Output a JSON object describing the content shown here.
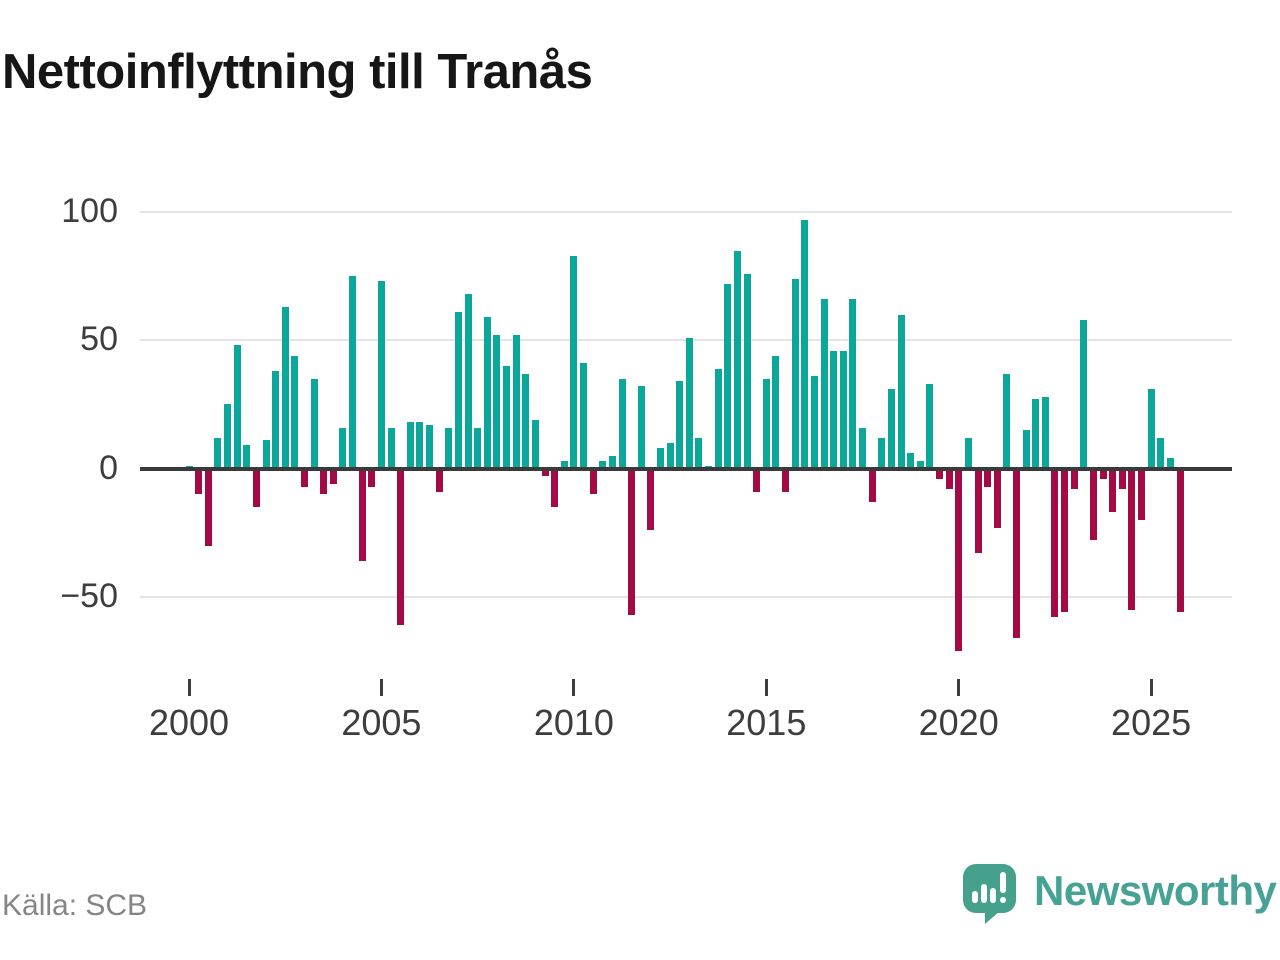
{
  "title": "Nettoinflyttning till Tranås",
  "source": "Källa: SCB",
  "branding": {
    "name": "Newsworthy",
    "logo_icon": "speech-bubble-bar-chart-icon"
  },
  "colors": {
    "positive": "#0ba79a",
    "negative": "#a40b44",
    "grid": "#e4e4e4",
    "zero_line": "#3a3a3a",
    "axis_text": "#3d3d3d",
    "title_text": "#161616",
    "source_text": "#858585",
    "brand": "#46a295"
  },
  "chart_data": {
    "type": "bar",
    "title": "Nettoinflyttning till Tranås",
    "xlabel": "",
    "ylabel": "",
    "grid": "horizontal",
    "legend": "none",
    "y_ticks": [
      100,
      50,
      0,
      -50
    ],
    "ylim": [
      -78,
      105
    ],
    "x_tick_years": [
      "2000",
      "2005",
      "2010",
      "2015",
      "2020",
      "2025"
    ],
    "frequency": "quarterly",
    "categories": [
      "2000 Q1",
      "2000 Q2",
      "2000 Q3",
      "2000 Q4",
      "2001 Q1",
      "2001 Q2",
      "2001 Q3",
      "2001 Q4",
      "2002 Q1",
      "2002 Q2",
      "2002 Q3",
      "2002 Q4",
      "2003 Q1",
      "2003 Q2",
      "2003 Q3",
      "2003 Q4",
      "2004 Q1",
      "2004 Q2",
      "2004 Q3",
      "2004 Q4",
      "2005 Q1",
      "2005 Q2",
      "2005 Q3",
      "2005 Q4",
      "2006 Q1",
      "2006 Q2",
      "2006 Q3",
      "2006 Q4",
      "2007 Q1",
      "2007 Q2",
      "2007 Q3",
      "2007 Q4",
      "2008 Q1",
      "2008 Q2",
      "2008 Q3",
      "2008 Q4",
      "2009 Q1",
      "2009 Q2",
      "2009 Q3",
      "2009 Q4",
      "2010 Q1",
      "2010 Q2",
      "2010 Q3",
      "2010 Q4",
      "2011 Q1",
      "2011 Q2",
      "2011 Q3",
      "2011 Q4",
      "2012 Q1",
      "2012 Q2",
      "2012 Q3",
      "2012 Q4",
      "2013 Q1",
      "2013 Q2",
      "2013 Q3",
      "2013 Q4",
      "2014 Q1",
      "2014 Q2",
      "2014 Q3",
      "2014 Q4",
      "2015 Q1",
      "2015 Q2",
      "2015 Q3",
      "2015 Q4",
      "2016 Q1",
      "2016 Q2",
      "2016 Q3",
      "2016 Q4",
      "2017 Q1",
      "2017 Q2",
      "2017 Q3",
      "2017 Q4",
      "2018 Q1",
      "2018 Q2",
      "2018 Q3",
      "2018 Q4",
      "2019 Q1",
      "2019 Q2",
      "2019 Q3",
      "2019 Q4",
      "2020 Q1",
      "2020 Q2",
      "2020 Q3",
      "2020 Q4",
      "2021 Q1",
      "2021 Q2",
      "2021 Q3",
      "2021 Q4",
      "2022 Q1",
      "2022 Q2",
      "2022 Q3",
      "2022 Q4",
      "2023 Q1",
      "2023 Q2",
      "2023 Q3",
      "2023 Q4",
      "2024 Q1",
      "2024 Q2",
      "2024 Q3",
      "2024 Q4",
      "2025 Q1",
      "2025 Q2",
      "2025 Q3",
      "2025 Q4"
    ],
    "values": [
      1,
      -10,
      -30,
      12,
      25,
      48,
      9,
      -15,
      11,
      38,
      63,
      44,
      -7,
      35,
      -10,
      -6,
      16,
      75,
      -36,
      -7,
      73,
      16,
      -61,
      18,
      18,
      17,
      -9,
      16,
      61,
      68,
      16,
      59,
      52,
      40,
      52,
      37,
      19,
      -3,
      -15,
      3,
      83,
      41,
      -10,
      3,
      5,
      35,
      -57,
      32,
      -24,
      8,
      10,
      34,
      51,
      12,
      1,
      39,
      72,
      85,
      76,
      -9,
      35,
      44,
      -9,
      74,
      97,
      36,
      66,
      46,
      46,
      66,
      16,
      -13,
      12,
      31,
      60,
      6,
      3,
      33,
      -4,
      -8,
      -71,
      12,
      -33,
      -7,
      -23,
      37,
      -66,
      15,
      27,
      28,
      -58,
      -56,
      -8,
      58,
      -28,
      -4,
      -17,
      -8,
      -55,
      -20,
      31,
      12,
      4,
      -56
    ]
  }
}
